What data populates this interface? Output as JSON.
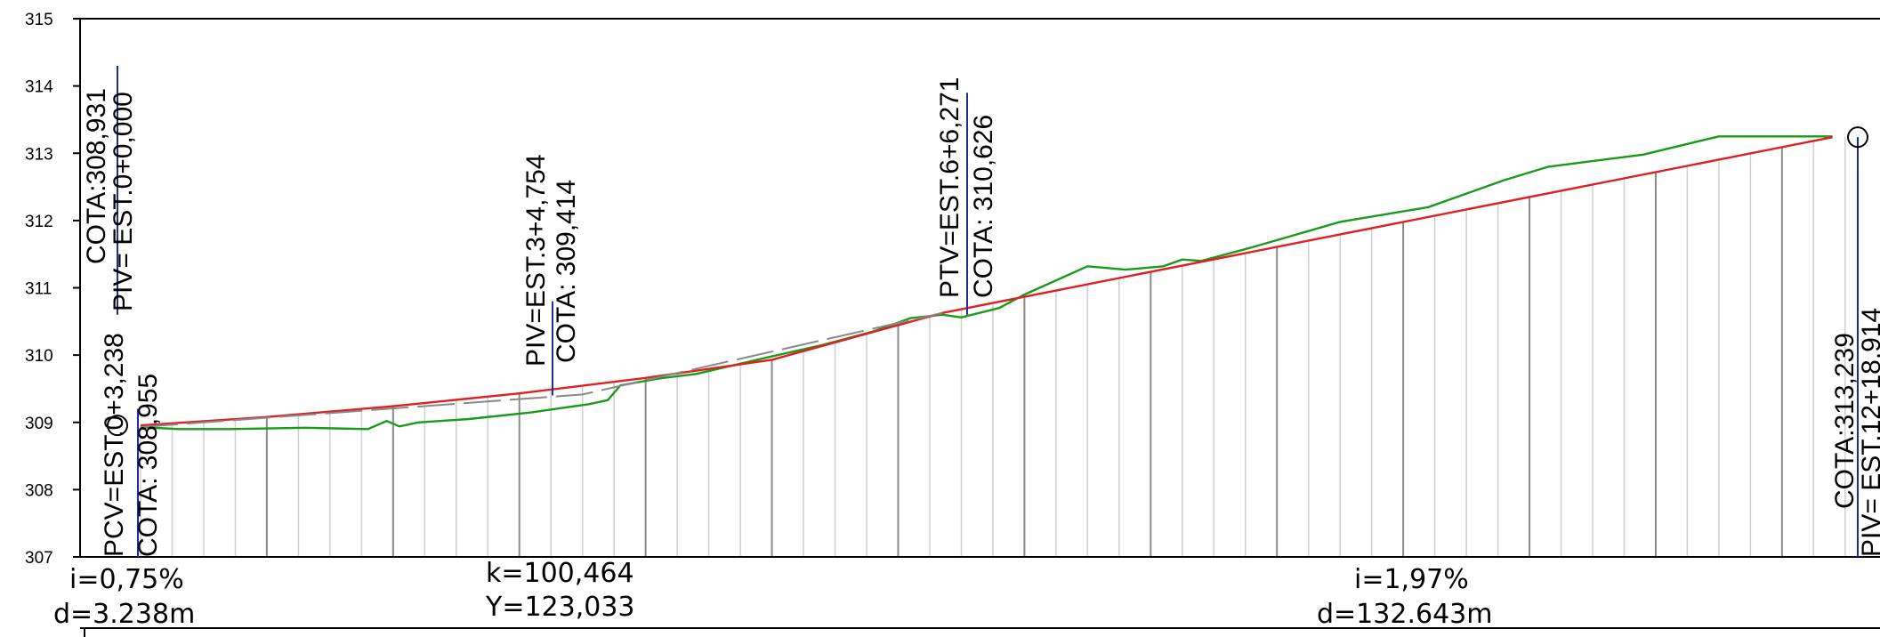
{
  "chart_data": {
    "type": "line",
    "title": "",
    "xlabel": "",
    "ylabel": "",
    "ylim": [
      307,
      315
    ],
    "y_ticks": [
      "307",
      "308",
      "309",
      "310",
      "311",
      "312",
      "313",
      "314",
      "315"
    ],
    "xlim": [
      0,
      136.0
    ],
    "series": [
      {
        "name": "",
        "color": "#1a9a1a",
        "role": "terreno",
        "points": [
          [
            0.0,
            308.93
          ],
          [
            3.0,
            308.9
          ],
          [
            7.0,
            308.9
          ],
          [
            13.0,
            308.92
          ],
          [
            18.0,
            308.9
          ],
          [
            19.5,
            309.02
          ],
          [
            20.5,
            308.94
          ],
          [
            22.0,
            309.0
          ],
          [
            26.0,
            309.05
          ],
          [
            31.0,
            309.15
          ],
          [
            35.5,
            309.27
          ],
          [
            37.0,
            309.33
          ],
          [
            38.0,
            309.55
          ],
          [
            41.0,
            309.65
          ],
          [
            44.0,
            309.72
          ],
          [
            50.0,
            309.98
          ],
          [
            54.0,
            310.15
          ],
          [
            55.0,
            310.2
          ],
          [
            58.0,
            310.35
          ],
          [
            61.0,
            310.55
          ],
          [
            63.5,
            310.6
          ],
          [
            65.0,
            310.56
          ],
          [
            68.0,
            310.7
          ],
          [
            70.0,
            310.9
          ],
          [
            75.0,
            311.32
          ],
          [
            78.0,
            311.27
          ],
          [
            81.0,
            311.32
          ],
          [
            82.5,
            311.42
          ],
          [
            84.0,
            311.4
          ],
          [
            88.0,
            311.6
          ],
          [
            95.0,
            311.98
          ],
          [
            102.0,
            312.2
          ],
          [
            108.0,
            312.6
          ],
          [
            111.5,
            312.8
          ],
          [
            119.0,
            312.98
          ],
          [
            125.0,
            313.25
          ],
          [
            134.0,
            313.25
          ]
        ]
      },
      {
        "name": "",
        "color": "#e02020",
        "role": "rasante",
        "points": [
          [
            0.0,
            308.955
          ],
          [
            10.0,
            309.08
          ],
          [
            20.0,
            309.24
          ],
          [
            30.0,
            309.43
          ],
          [
            40.0,
            309.66
          ],
          [
            50.0,
            309.93
          ],
          [
            63.5,
            310.626
          ],
          [
            134.0,
            313.239
          ]
        ]
      },
      {
        "name": "",
        "color": "#888888",
        "role": "tangentes",
        "dashed": true,
        "points": [
          [
            0.0,
            308.931
          ],
          [
            35.0,
            309.414
          ],
          [
            63.5,
            310.626
          ]
        ]
      }
    ],
    "stations": [
      {
        "x": 0.0,
        "labels": [
          "PIV= EST.0+0,000",
          "COTA:308,931"
        ]
      },
      {
        "x": 2.5,
        "labels": [
          "PCV=EST.0+3,238",
          "COTA: 308,955"
        ]
      },
      {
        "x": 35.0,
        "labels": [
          "PIV=EST.3+4,754",
          "COTA: 309,414"
        ]
      },
      {
        "x": 63.5,
        "labels": [
          "PTV=EST.6+6,271",
          "COTA: 310,626"
        ]
      },
      {
        "x": 134.0,
        "labels": [
          "COTA:313,239",
          "PIV= EST.12+18,914"
        ]
      }
    ],
    "annotations": {
      "left_slope": {
        "i": "i=0,75%",
        "d": "d=3.238m"
      },
      "curve": {
        "k": "k=100,464",
        "y": "Y=123,033"
      },
      "right_slope": {
        "i": "i=1,97%",
        "d": "d=132.643m"
      }
    }
  }
}
